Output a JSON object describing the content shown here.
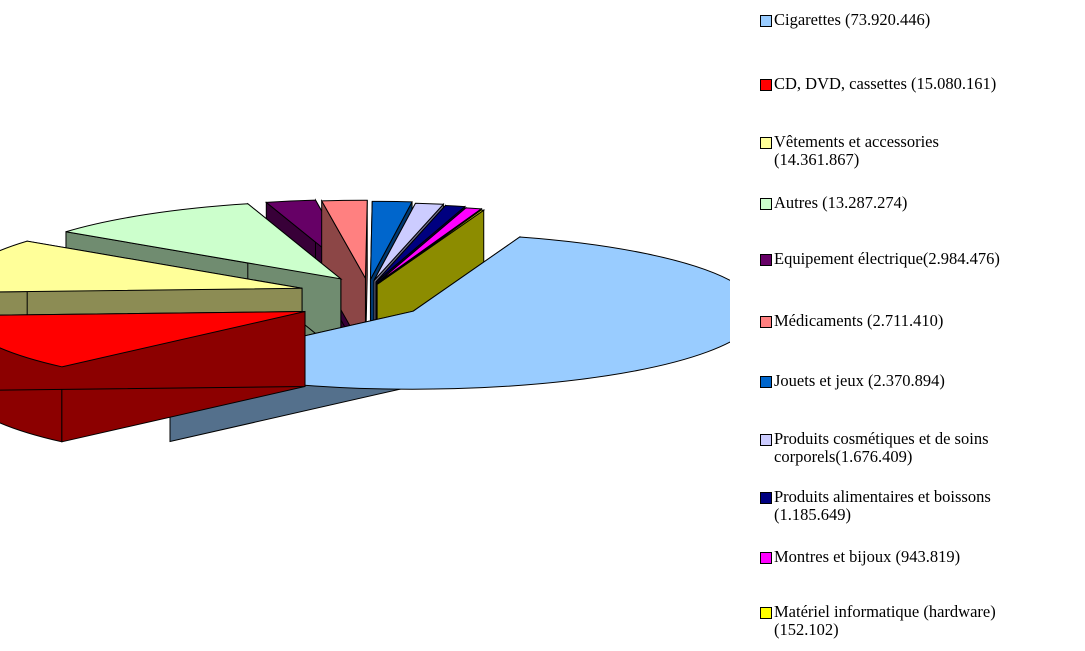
{
  "chart_data": {
    "type": "pie",
    "title": "",
    "style": "exploded 3D pie",
    "legend_position": "right",
    "slices": [
      {
        "label": "Cigarettes (73.920.446)",
        "category": "Cigarettes",
        "value": 73920446,
        "color": "#99CCFF"
      },
      {
        "label": "CD, DVD, cassettes (15.080.161)",
        "category": "CD, DVD, cassettes",
        "value": 15080161,
        "color": "#FF0000"
      },
      {
        "label": "Vêtements et accessories\n(14.361.867)",
        "category": "Vêtements et accessories",
        "value": 14361867,
        "color": "#FFFF99"
      },
      {
        "label": "Autres (13.287.274)",
        "category": "Autres",
        "value": 13287274,
        "color": "#CCFFCC"
      },
      {
        "label": "Equipement électrique(2.984.476)",
        "category": "Equipement électrique",
        "value": 2984476,
        "color": "#660066"
      },
      {
        "label": "Médicaments (2.711.410)",
        "category": "Médicaments",
        "value": 2711410,
        "color": "#FF8080"
      },
      {
        "label": "Jouets et jeux (2.370.894)",
        "category": "Jouets et jeux",
        "value": 2370894,
        "color": "#0066CC"
      },
      {
        "label": "Produits cosmétiques et de soins\ncorporels(1.676.409)",
        "category": "Produits cosmétiques et de soins corporels",
        "value": 1676409,
        "color": "#CCCCFF"
      },
      {
        "label": "Produits alimentaires et boissons\n(1.185.649)",
        "category": "Produits alimentaires et boissons",
        "value": 1185649,
        "color": "#000080"
      },
      {
        "label": "Montres et bijoux (943.819)",
        "category": "Montres et bijoux",
        "value": 943819,
        "color": "#FF00FF"
      },
      {
        "label": "Matériel informatique  (hardware)\n(152.102)",
        "category": "Matériel informatique (hardware)",
        "value": 152102,
        "color": "#FFFF00"
      }
    ]
  }
}
